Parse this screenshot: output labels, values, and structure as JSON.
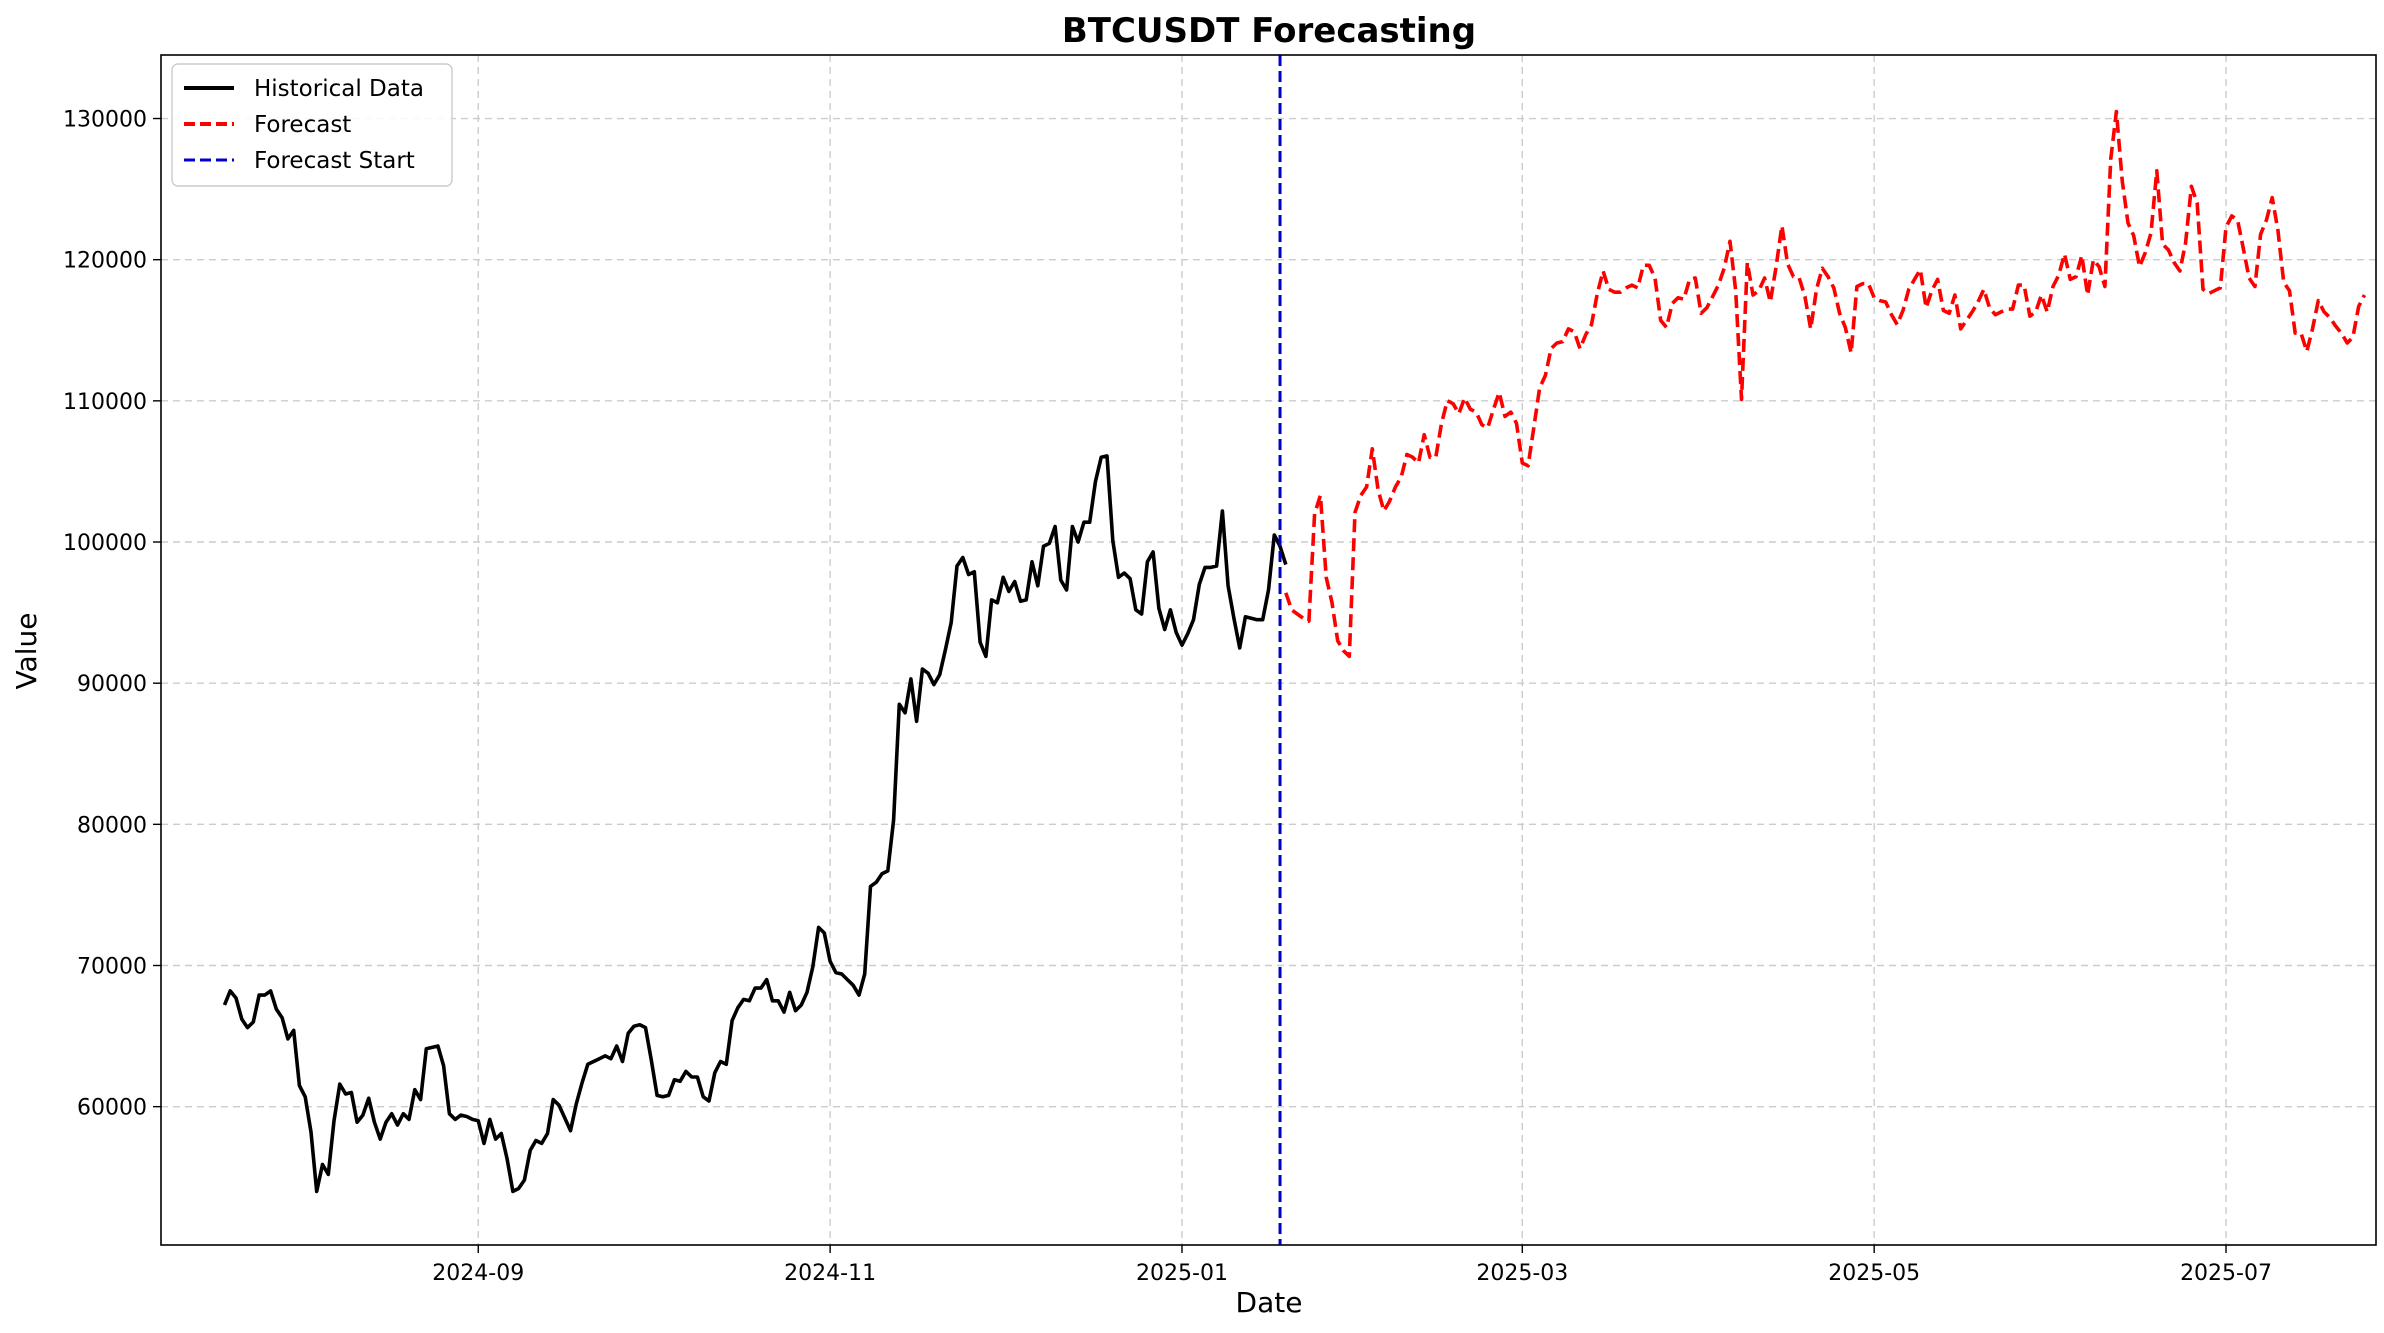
{
  "chart_data": {
    "type": "line",
    "title": "BTCUSDT Forecasting",
    "xlabel": "Date",
    "ylabel": "Value",
    "xlim": [
      "2024-07-08",
      "2025-07-27"
    ],
    "ylim": [
      50200,
      134500
    ],
    "x_ticks": [
      {
        "date": "2024-09-01",
        "label": "2024-09"
      },
      {
        "date": "2024-11-01",
        "label": "2024-11"
      },
      {
        "date": "2025-01-01",
        "label": "2025-01"
      },
      {
        "date": "2025-03-01",
        "label": "2025-03"
      },
      {
        "date": "2025-05-01",
        "label": "2025-05"
      },
      {
        "date": "2025-07-01",
        "label": "2025-07"
      }
    ],
    "y_ticks": [
      60000,
      70000,
      80000,
      90000,
      100000,
      110000,
      120000,
      130000
    ],
    "grid": true,
    "legend_position": "top-left",
    "forecast_start": "2025-01-18",
    "series": [
      {
        "name": "Historical Data",
        "color": "#000000",
        "style": "solid",
        "x_start": "2024-07-19",
        "step_days": 1,
        "values": [
          67200,
          68200,
          67700,
          66200,
          65600,
          66000,
          67900,
          67900,
          68200,
          66900,
          66300,
          64800,
          65400,
          61500,
          60700,
          58200,
          54000,
          55900,
          55200,
          59000,
          61600,
          60900,
          61000,
          58900,
          59400,
          60600,
          58900,
          57700,
          58900,
          59500,
          58700,
          59500,
          59100,
          61200,
          60500,
          64100,
          64200,
          64300,
          62900,
          59500,
          59100,
          59400,
          59300,
          59100,
          59000,
          57400,
          59100,
          57700,
          58100,
          56300,
          54000,
          54200,
          54800,
          56900,
          57600,
          57400,
          58100,
          60500,
          60100,
          59200,
          58300,
          60200,
          61700,
          63000,
          63200,
          63400,
          63600,
          63400,
          64300,
          63200,
          65200,
          65700,
          65800,
          65600,
          63300,
          60800,
          60700,
          60800,
          61900,
          61800,
          62500,
          62100,
          62100,
          60700,
          60400,
          62400,
          63200,
          63000,
          66100,
          67000,
          67600,
          67500,
          68400,
          68400,
          69000,
          67500,
          67500,
          66700,
          68100,
          66800,
          67200,
          68100,
          69900,
          72700,
          72300,
          70300,
          69500,
          69400,
          69000,
          68600,
          67900,
          69400,
          75600,
          75900,
          76500,
          76700,
          80300,
          88500,
          87900,
          90300,
          87300,
          91000,
          90700,
          89900,
          90600,
          92400,
          94300,
          98300,
          98900,
          97700,
          97900,
          92900,
          91900,
          95900,
          95700,
          97500,
          96500,
          97200,
          95800,
          95900,
          98600,
          96900,
          99700,
          99900,
          101100,
          97300,
          96600,
          101100,
          100000,
          101400,
          101400,
          104300,
          106000,
          106100,
          100100,
          97500,
          97800,
          97400,
          95200,
          94900,
          98600,
          99300,
          95300,
          93800,
          95200,
          93600,
          92700,
          93500,
          94500,
          97000,
          98200,
          98200,
          98300,
          102200,
          96900,
          94600,
          92500,
          94700,
          94600,
          94500,
          94500,
          96600,
          100500,
          99700,
          98400
        ]
      },
      {
        "name": "Forecast",
        "color": "#ff0000",
        "style": "dashed",
        "x_start": "2025-01-19",
        "step_days": 1,
        "values": [
          96400,
          95200,
          94900,
          94600,
          94400,
          102000,
          103300,
          97500,
          95700,
          93000,
          92300,
          91900,
          102100,
          103300,
          103900,
          106600,
          103700,
          102200,
          102900,
          103900,
          104600,
          106200,
          106000,
          105600,
          107600,
          106000,
          106000,
          108400,
          110000,
          109800,
          109100,
          110200,
          109400,
          109200,
          108300,
          108100,
          109400,
          110600,
          108900,
          109200,
          108400,
          105600,
          105400,
          108100,
          110900,
          111800,
          113700,
          114100,
          114200,
          115100,
          114900,
          113700,
          114700,
          115400,
          117600,
          119200,
          117900,
          117700,
          117700,
          118000,
          118200,
          118000,
          119600,
          119600,
          118700,
          115700,
          115200,
          116900,
          117300,
          117200,
          118600,
          118700,
          116200,
          116600,
          117400,
          118200,
          119400,
          121300,
          117800,
          110100,
          119800,
          117500,
          117800,
          118700,
          117000,
          119500,
          122400,
          119700,
          118800,
          118700,
          117400,
          115100,
          117900,
          119400,
          118800,
          118000,
          116200,
          115200,
          113400,
          118100,
          118300,
          118300,
          117300,
          117100,
          117000,
          116100,
          115400,
          116400,
          117900,
          118600,
          119300,
          116600,
          117800,
          118600,
          116400,
          116200,
          117500,
          115100,
          115700,
          116300,
          117000,
          117900,
          116600,
          116100,
          116300,
          116500,
          116500,
          118200,
          118200,
          116000,
          116300,
          117500,
          116300,
          118100,
          118900,
          120400,
          118600,
          118800,
          120300,
          117500,
          120000,
          119500,
          118100,
          127100,
          130500,
          125600,
          122600,
          121700,
          119500,
          120500,
          121900,
          126300,
          121100,
          120700,
          119800,
          119200,
          121200,
          125200,
          124000,
          117900,
          117600,
          117800,
          118000,
          122300,
          123100,
          122800,
          120800,
          118700,
          118100,
          121800,
          122800,
          124400,
          122100,
          118400,
          117800,
          114800,
          114800,
          113500,
          115100,
          117100,
          116300,
          115900,
          115300,
          114800,
          114100,
          114500,
          116700,
          117500
        ]
      }
    ],
    "markers": [
      {
        "name": "Forecast Start",
        "color": "#0000cc",
        "style": "dashed",
        "x": "2025-01-18"
      }
    ]
  }
}
